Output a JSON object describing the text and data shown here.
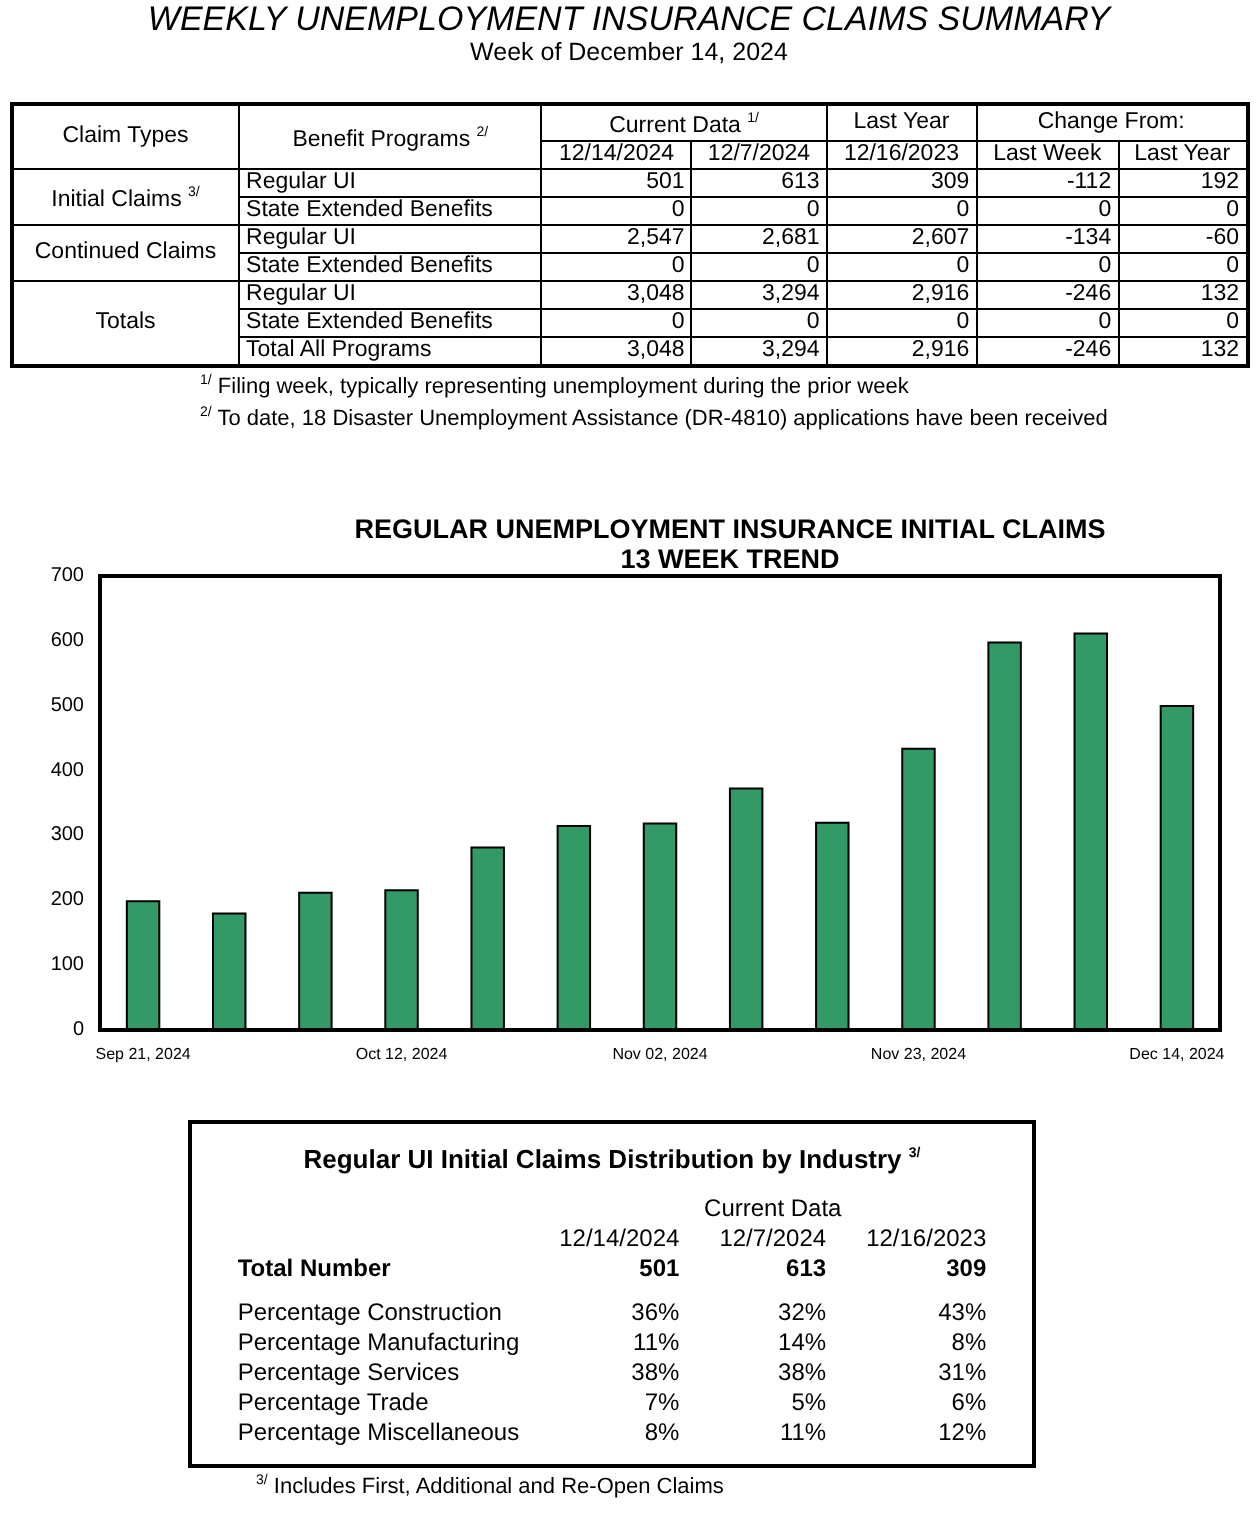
{
  "chart_data": [
    {
      "type": "other",
      "title": "WEEKLY UNEMPLOYMENT INSURANCE CLAIMS SUMMARY",
      "subtitle": "Week of December 14, 2024",
      "cell_labels": [
        [
          "Claim Types",
          "Benefit Programs $^{2/}$",
          "Current Data $^{1/}$",
          null,
          "Last Year",
          "Change From:",
          null
        ],
        [
          null,
          null,
          "12/14/2024",
          "12/7/2024",
          "12/16/2023",
          "Last Week",
          "Last Year"
        ],
        [
          "Initial Claims $^{3/}$",
          "Regular UI",
          "501",
          "613",
          "309",
          "-112",
          "192"
        ],
        [
          null,
          "State Extended Benefits",
          "0",
          "0",
          "0",
          "0",
          "0"
        ],
        [
          "Continued Claims",
          "Regular UI",
          "2,547",
          "2,681",
          "2,607",
          "-134",
          "-60"
        ],
        [
          null,
          "State Extended Benefits",
          "0",
          "0",
          "0",
          "0",
          "0"
        ],
        [
          "Totals",
          "Regular UI",
          "3,048",
          "3,294",
          "2,916",
          "-246",
          "132"
        ],
        [
          null,
          "State Extended Benefits",
          "0",
          "0",
          "0",
          "0",
          "0"
        ],
        [
          null,
          "Total All Programs",
          "3,048",
          "3,294",
          "2,916",
          "-246",
          "132"
        ]
      ],
      "annotations": [
        "$^{1/}$ Filing week, typically representing unemployment during the prior week",
        "$^{2/}$ To date, 18 Disaster Unemployment Assistance (DR-4810) applications have been received"
      ]
    },
    {
      "type": "bar",
      "title": "REGULAR UNEMPLOYMENT INSURANCE INITIAL CLAIMS",
      "subtitle": "13 WEEK TREND",
      "categories": [
        "Sep 21, 2024",
        null,
        null,
        "Oct 12, 2024",
        null,
        null,
        "Nov 02, 2024",
        null,
        null,
        "Nov 23, 2024",
        null,
        null,
        "Dec 14, 2024"
      ],
      "values": [
        200,
        181,
        213,
        217,
        283,
        316,
        320,
        374,
        321,
        435,
        599,
        613,
        501
      ],
      "color": "#339966",
      "ylim": [
        0,
        700
      ],
      "yticks": [
        0,
        100,
        200,
        300,
        400,
        500,
        600,
        700
      ],
      "grid": false
    },
    {
      "type": "other",
      "title": "Regular UI Initial Claims Distribution by Industry $^{3/}$",
      "cell_labels": [
        [
          null,
          "Current Data",
          null,
          null
        ],
        [
          null,
          "12/14/2024",
          "12/7/2024",
          "12/16/2023"
        ],
        [
          "Total Number",
          "501",
          "613",
          "309"
        ],
        [
          "Percentage Construction",
          "36%",
          "32%",
          "43%"
        ],
        [
          "Percentage Manufacturing",
          "11%",
          "14%",
          "8%"
        ],
        [
          "Percentage Services",
          "38%",
          "38%",
          "31%"
        ],
        [
          "Percentage Trade",
          "7%",
          "5%",
          "6%"
        ],
        [
          "Percentage Miscellaneous",
          "8%",
          "11%",
          "12%"
        ]
      ],
      "annotations": [
        "$^{3/}$ Includes First, Additional and Re-Open Claims"
      ]
    }
  ]
}
